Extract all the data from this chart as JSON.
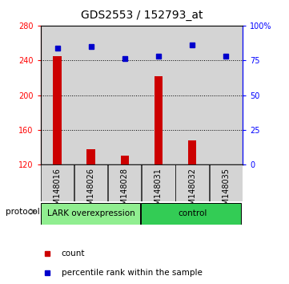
{
  "title": "GDS2553 / 152793_at",
  "samples": [
    "GSM148016",
    "GSM148026",
    "GSM148028",
    "GSM148031",
    "GSM148032",
    "GSM148035"
  ],
  "counts": [
    245,
    138,
    130,
    222,
    148,
    120
  ],
  "percentile_ranks": [
    84,
    85,
    76,
    78,
    86,
    78
  ],
  "left_ylim": [
    120,
    280
  ],
  "left_yticks": [
    120,
    160,
    200,
    240,
    280
  ],
  "right_ylim": [
    0,
    100
  ],
  "right_yticks": [
    0,
    25,
    50,
    75,
    100
  ],
  "right_yticklabels": [
    "0",
    "25",
    "50",
    "75",
    "100%"
  ],
  "dotted_lines": [
    160,
    200,
    240
  ],
  "bar_color": "#cc0000",
  "square_color": "#0000cc",
  "group1_label": "LARK overexpression",
  "group2_label": "control",
  "group1_color": "#90ee90",
  "group2_color": "#33cc55",
  "protocol_label": "protocol",
  "legend_count_label": "count",
  "legend_pct_label": "percentile rank within the sample",
  "title_fontsize": 10,
  "tick_label_fontsize": 7,
  "sample_label_fontsize": 7,
  "bar_width": 0.25,
  "bg_color": "#d4d4d4"
}
